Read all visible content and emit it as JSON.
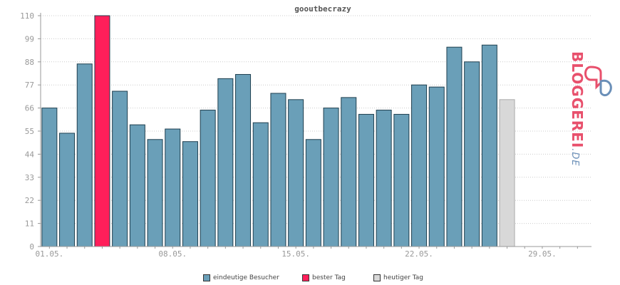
{
  "chart_data": {
    "type": "bar",
    "title": "gooutbecrazy",
    "ylim": [
      0,
      110
    ],
    "yticks": [
      0,
      11,
      22,
      33,
      44,
      55,
      66,
      77,
      88,
      99,
      110
    ],
    "xtick_labels": [
      {
        "label": "01.05.",
        "day": 1
      },
      {
        "label": "08.05.",
        "day": 8
      },
      {
        "label": "15.05.",
        "day": 15
      },
      {
        "label": "22.05.",
        "day": 22
      },
      {
        "label": "29.05.",
        "day": 29
      }
    ],
    "series": [
      {
        "name": "eindeutige Besucher",
        "color": "#6a9fb8"
      },
      {
        "name": "bester Tag",
        "color": "#ff1f5a"
      },
      {
        "name": "heutiger Tag",
        "color": "#d8d8d8"
      }
    ],
    "bars": [
      {
        "day": 1,
        "value": 66,
        "series": "eindeutige Besucher"
      },
      {
        "day": 2,
        "value": 54,
        "series": "eindeutige Besucher"
      },
      {
        "day": 3,
        "value": 87,
        "series": "eindeutige Besucher"
      },
      {
        "day": 4,
        "value": 110,
        "series": "bester Tag"
      },
      {
        "day": 5,
        "value": 74,
        "series": "eindeutige Besucher"
      },
      {
        "day": 6,
        "value": 58,
        "series": "eindeutige Besucher"
      },
      {
        "day": 7,
        "value": 51,
        "series": "eindeutige Besucher"
      },
      {
        "day": 8,
        "value": 56,
        "series": "eindeutige Besucher"
      },
      {
        "day": 9,
        "value": 50,
        "series": "eindeutige Besucher"
      },
      {
        "day": 10,
        "value": 65,
        "series": "eindeutige Besucher"
      },
      {
        "day": 11,
        "value": 80,
        "series": "eindeutige Besucher"
      },
      {
        "day": 12,
        "value": 82,
        "series": "eindeutige Besucher"
      },
      {
        "day": 13,
        "value": 59,
        "series": "eindeutige Besucher"
      },
      {
        "day": 14,
        "value": 73,
        "series": "eindeutige Besucher"
      },
      {
        "day": 15,
        "value": 70,
        "series": "eindeutige Besucher"
      },
      {
        "day": 16,
        "value": 51,
        "series": "eindeutige Besucher"
      },
      {
        "day": 17,
        "value": 66,
        "series": "eindeutige Besucher"
      },
      {
        "day": 18,
        "value": 71,
        "series": "eindeutige Besucher"
      },
      {
        "day": 19,
        "value": 63,
        "series": "eindeutige Besucher"
      },
      {
        "day": 20,
        "value": 65,
        "series": "eindeutige Besucher"
      },
      {
        "day": 21,
        "value": 63,
        "series": "eindeutige Besucher"
      },
      {
        "day": 22,
        "value": 77,
        "series": "eindeutige Besucher"
      },
      {
        "day": 23,
        "value": 76,
        "series": "eindeutige Besucher"
      },
      {
        "day": 24,
        "value": 95,
        "series": "eindeutige Besucher"
      },
      {
        "day": 25,
        "value": 88,
        "series": "eindeutige Besucher"
      },
      {
        "day": 26,
        "value": 96,
        "series": "eindeutige Besucher"
      },
      {
        "day": 27,
        "value": 70,
        "series": "heutiger Tag"
      }
    ],
    "grid": true,
    "legend_position": "bottom"
  },
  "logo": {
    "brand": "BLOGGEREI",
    "suffix": ".DE",
    "colors": {
      "primary": "#e8506c",
      "secondary": "#6a8fb8"
    }
  },
  "colors": {
    "axis": "#999999",
    "grid": "#cccccc",
    "bar_stroke": "#1f3f4f"
  }
}
